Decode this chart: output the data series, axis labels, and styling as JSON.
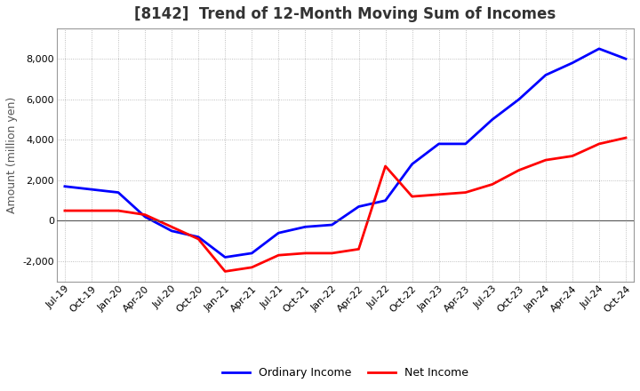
{
  "title": "[8142]  Trend of 12-Month Moving Sum of Incomes",
  "ylabel": "Amount (million yen)",
  "legend_labels": [
    "Ordinary Income",
    "Net Income"
  ],
  "ordinary_color": "#0000FF",
  "net_color": "#FF0000",
  "background_color": "#FFFFFF",
  "xlabels": [
    "Jul-19",
    "Oct-19",
    "Jan-20",
    "Apr-20",
    "Jul-20",
    "Oct-20",
    "Jan-21",
    "Apr-21",
    "Jul-21",
    "Oct-21",
    "Jan-22",
    "Apr-22",
    "Jul-22",
    "Oct-22",
    "Jan-23",
    "Apr-23",
    "Jul-23",
    "Oct-23",
    "Jan-24",
    "Apr-24",
    "Jul-24",
    "Oct-24"
  ],
  "ordinary_income": [
    1700,
    1550,
    1400,
    200,
    -500,
    -800,
    -1800,
    -1600,
    -600,
    -300,
    -200,
    700,
    1000,
    2800,
    3800,
    3800,
    5000,
    6000,
    7200,
    7800,
    8500,
    8000
  ],
  "net_income": [
    500,
    500,
    500,
    300,
    -300,
    -900,
    -2500,
    -2300,
    -1700,
    -1600,
    -1600,
    -1400,
    2700,
    1200,
    1300,
    1400,
    1800,
    2500,
    3000,
    3200,
    3800,
    4100
  ],
  "ylim": [
    -3000,
    9500
  ],
  "yticks": [
    -2000,
    0,
    2000,
    4000,
    6000,
    8000
  ],
  "grid_color": "#999999",
  "spine_color": "#999999",
  "title_fontsize": 12,
  "tick_fontsize": 8,
  "ylabel_fontsize": 9,
  "legend_fontsize": 9,
  "linewidth": 2.0
}
